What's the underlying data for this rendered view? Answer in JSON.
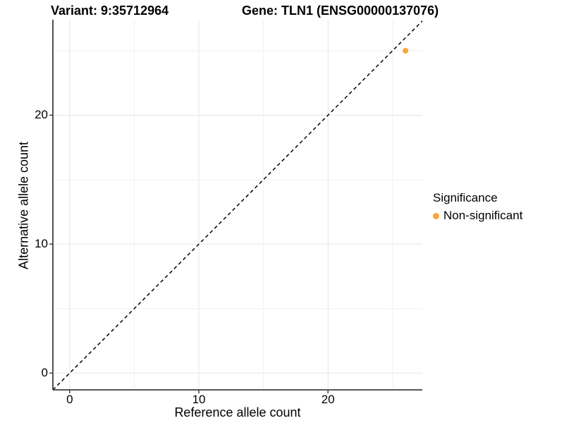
{
  "titles": {
    "variant": "Variant: 9:35712964",
    "gene": "Gene: TLN1 (ENSG00000137076)"
  },
  "axes": {
    "x_label": "Reference allele count",
    "y_label": "Alternative allele count"
  },
  "legend": {
    "title": "Significance",
    "entries": [
      {
        "label": "Non-significant",
        "color": "#FAA43A"
      }
    ]
  },
  "colors": {
    "point": "#FAA43A",
    "axis_line": "#404040",
    "major_grid": "#E6E6E6",
    "minor_grid": "#F0F0F0",
    "reference_line": "#000000",
    "background": "#FFFFFF"
  },
  "chart_data": {
    "type": "scatter",
    "title": "Variant: 9:35712964   Gene: TLN1 (ENSG00000137076)",
    "xlabel": "Reference allele count",
    "ylabel": "Alternative allele count",
    "xlim": [
      -1.3,
      27.3
    ],
    "ylim": [
      -1.3,
      27.4
    ],
    "x_ticks": [
      0,
      10,
      20
    ],
    "y_ticks": [
      0,
      10,
      20
    ],
    "x_minor_grid": [
      5,
      15,
      25
    ],
    "y_minor_grid": [
      5,
      15,
      25
    ],
    "grid": true,
    "legend_position": "right",
    "series": [
      {
        "name": "Non-significant",
        "color": "#FAA43A",
        "points": [
          {
            "x": 26,
            "y": 25
          }
        ]
      }
    ],
    "identity_line": {
      "equation": "y = x",
      "style": "dashed",
      "color": "#000000"
    }
  }
}
